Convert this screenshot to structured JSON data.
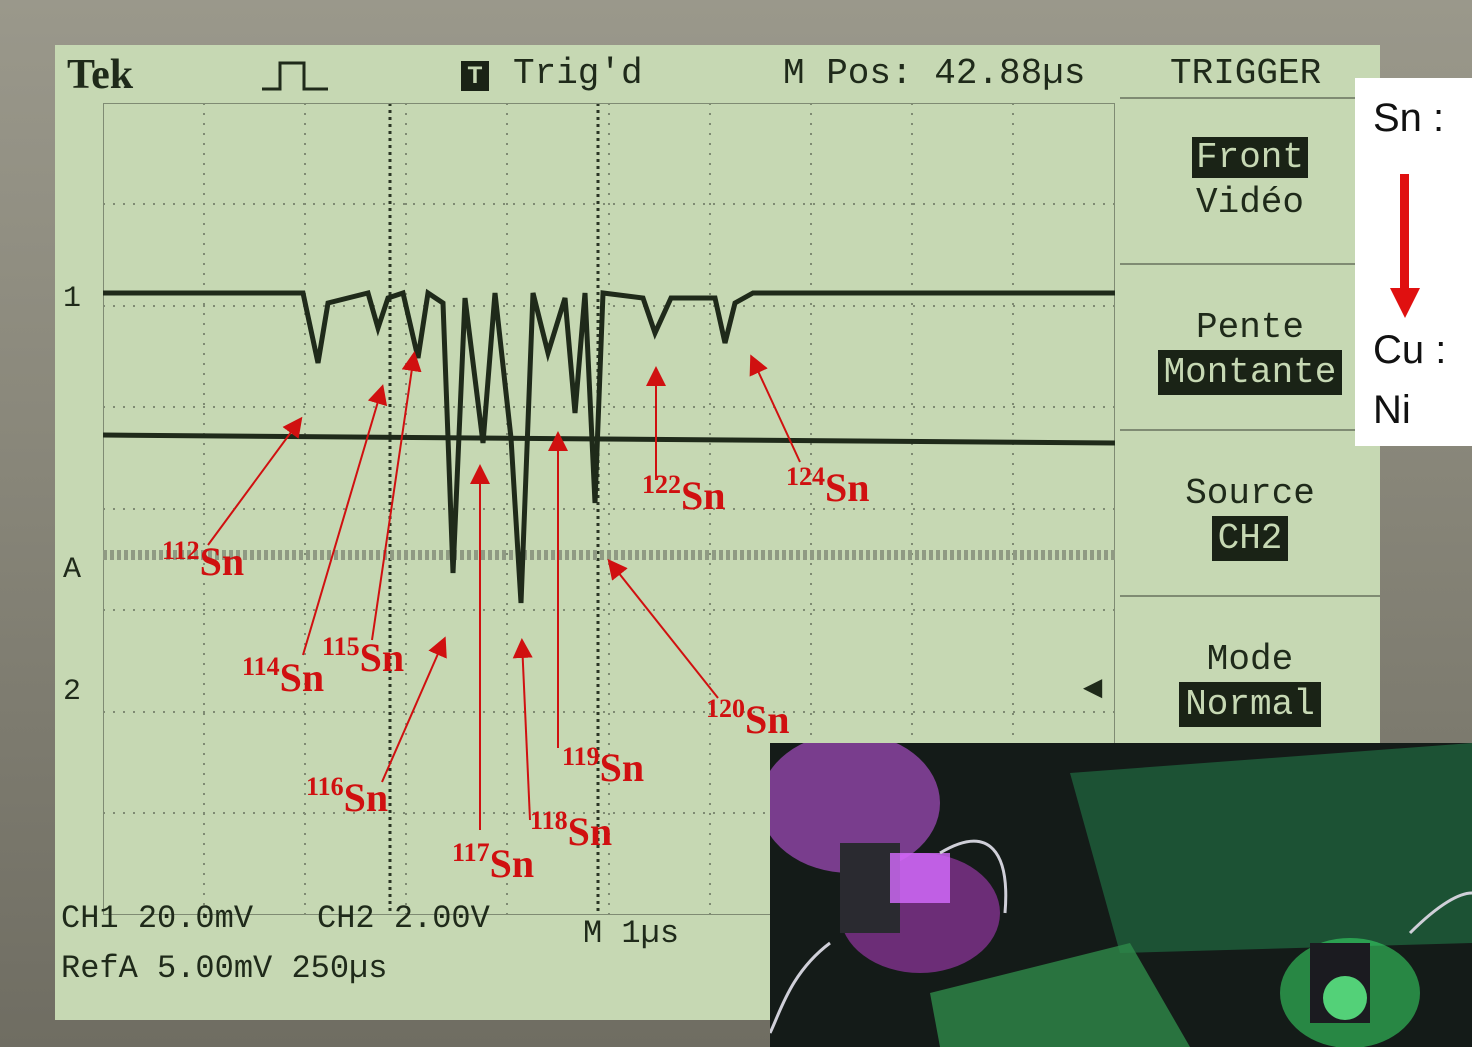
{
  "header": {
    "brand": "Tek",
    "trigger_icon": "T",
    "trigger_status": "Trig'd",
    "m_pos": "M Pos: 42.88µs",
    "menu_title": "TRIGGER"
  },
  "menu": {
    "items": [
      {
        "key": "Front",
        "value": "Vidéo",
        "key_inverted": true
      },
      {
        "key": "Pente",
        "value": "Montante"
      },
      {
        "key": "Source",
        "value": "CH2"
      },
      {
        "key": "Mode",
        "value": "Normal"
      }
    ]
  },
  "channel_markers": {
    "ch1": "1",
    "refA": "A",
    "ch2": "2"
  },
  "bottom": {
    "ch1": "CH1 20.0mV",
    "ch2": "CH2 2.00V",
    "timebase": "M 1µs",
    "refA": "RefA 5.00mV 250µs"
  },
  "isotopes": [
    {
      "mass": "112",
      "el": "Sn"
    },
    {
      "mass": "114",
      "el": "Sn"
    },
    {
      "mass": "115",
      "el": "Sn"
    },
    {
      "mass": "116",
      "el": "Sn"
    },
    {
      "mass": "117",
      "el": "Sn"
    },
    {
      "mass": "118",
      "el": "Sn"
    },
    {
      "mass": "119",
      "el": "Sn"
    },
    {
      "mass": "120",
      "el": "Sn"
    },
    {
      "mass": "122",
      "el": "Sn"
    },
    {
      "mass": "124",
      "el": "Sn"
    }
  ],
  "legend": {
    "from": "Sn :",
    "to": "Cu :",
    "to2": "Ni"
  },
  "colors": {
    "screen": "#c6d8b3",
    "trace": "#1f2a1a",
    "annotation": "#d01010"
  }
}
